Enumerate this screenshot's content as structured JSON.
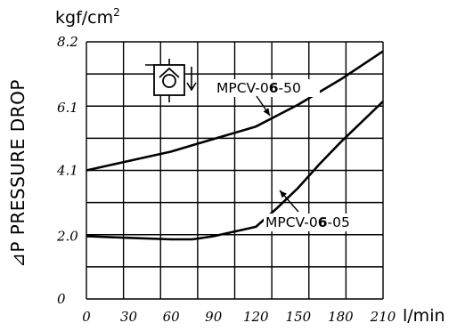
{
  "chart_data": {
    "type": "line",
    "ylabel": "⊿P PRESSURE DROP",
    "y_unit": "kgf/cm",
    "y_unit_sup": "2",
    "x_unit": "l/min",
    "xlim": [
      0,
      210
    ],
    "ylim": [
      0,
      8.2
    ],
    "x_ticks": [
      "0",
      "30",
      "60",
      "90",
      "120",
      "150",
      "180",
      "210"
    ],
    "y_ticks": [
      "0",
      "2.0",
      "4.1",
      "6.1",
      "8.2"
    ],
    "series": [
      {
        "name": "MPCV-06-50",
        "label_parts": [
          "MPCV-0",
          "6",
          "-50"
        ],
        "x": [
          0,
          30,
          60,
          75,
          90,
          120,
          150,
          180,
          210
        ],
        "y": [
          4.1,
          4.4,
          4.7,
          4.9,
          5.1,
          5.5,
          6.2,
          7.0,
          7.9
        ]
      },
      {
        "name": "MPCV-06-05",
        "label_parts": [
          "MPCV-0",
          "6",
          "-05"
        ],
        "x": [
          0,
          30,
          60,
          75,
          90,
          120,
          135,
          150,
          165,
          180,
          210
        ],
        "y": [
          2.0,
          1.95,
          1.9,
          1.9,
          2.0,
          2.3,
          2.9,
          3.55,
          4.3,
          5.0,
          6.3
        ]
      }
    ],
    "grid": true,
    "symbol": "check-valve-icon"
  }
}
